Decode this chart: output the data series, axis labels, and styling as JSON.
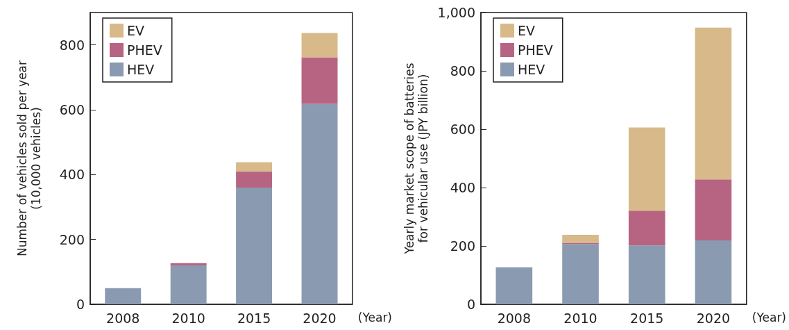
{
  "chart_data": [
    {
      "type": "bar",
      "stacked": true,
      "categories": [
        "2008",
        "2010",
        "2015",
        "2020"
      ],
      "xlabel": "(Year)",
      "ylabel": "Number of vehicles sold per year\n(10,000 vehicles)",
      "ylim": [
        0,
        900
      ],
      "yticks": [
        0,
        200,
        400,
        600,
        800
      ],
      "grid": false,
      "legend": "top left",
      "series": [
        {
          "name": "HEV",
          "color": "#8a9ab0",
          "values": [
            50,
            120,
            360,
            618
          ]
        },
        {
          "name": "PHEV",
          "color": "#b76482",
          "values": [
            0,
            7,
            50,
            144
          ]
        },
        {
          "name": "EV",
          "color": "#d7b98a",
          "values": [
            0,
            0,
            28,
            75
          ]
        }
      ]
    },
    {
      "type": "bar",
      "stacked": true,
      "categories": [
        "2008",
        "2010",
        "2015",
        "2020"
      ],
      "xlabel": "(Year)",
      "ylabel": "Yearly market scope of batteries\nfor vehicular use (JPY billion)",
      "ylim": [
        0,
        1000
      ],
      "yticks": [
        0,
        200,
        400,
        600,
        800,
        {
          "value": 1000,
          "label": "1,000"
        }
      ],
      "grid": false,
      "legend": "top left",
      "series": [
        {
          "name": "HEV",
          "color": "#8a9ab0",
          "values": [
            127,
            206,
            202,
            219
          ]
        },
        {
          "name": "PHEV",
          "color": "#b76482",
          "values": [
            0,
            5,
            119,
            209
          ]
        },
        {
          "name": "EV",
          "color": "#d7b98a",
          "values": [
            0,
            27,
            285,
            520
          ]
        }
      ]
    }
  ]
}
